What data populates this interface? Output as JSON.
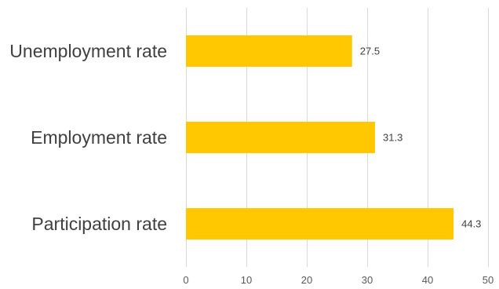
{
  "chart_data": {
    "type": "bar",
    "orientation": "horizontal",
    "categories": [
      "Unemployment rate",
      "Employment rate",
      "Participation rate"
    ],
    "values": [
      27.5,
      31.3,
      44.3
    ],
    "data_labels": [
      "27.5",
      "31.3",
      "44.3"
    ],
    "xlim": [
      0,
      50
    ],
    "x_ticks": [
      0,
      10,
      20,
      30,
      40,
      50
    ],
    "grid": true,
    "legend": "none",
    "bar_color": "#FFC800"
  }
}
